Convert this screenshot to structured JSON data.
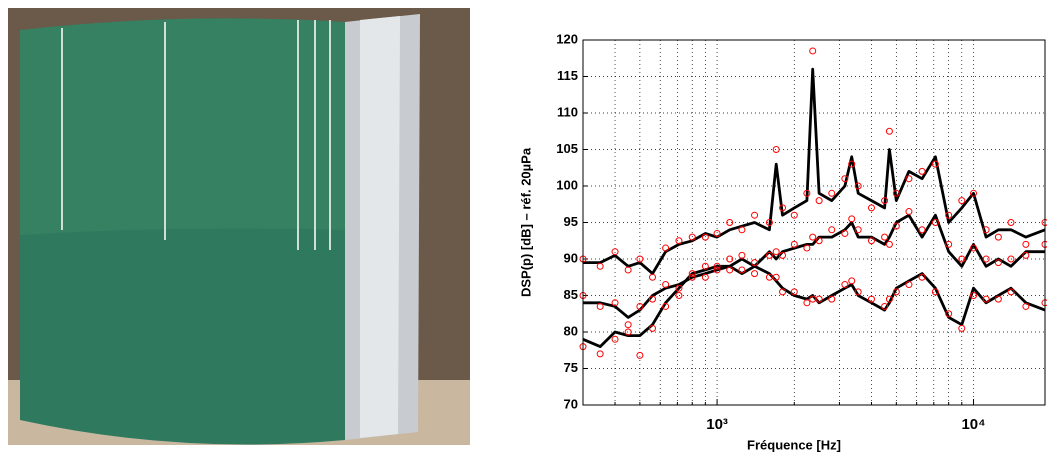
{
  "chart_data": {
    "type": "line",
    "xlabel": "Fréquence [Hz]",
    "ylabel": "DSP(p) [dB] – réf. 20µPa",
    "log_x": true,
    "grid": true,
    "xlim": [
      300,
      19000
    ],
    "ylim": [
      70,
      120
    ],
    "xticks": [
      {
        "value": 1000,
        "label": "10³"
      },
      {
        "value": 10000,
        "label": "10⁴"
      }
    ],
    "xminorticks": [
      400,
      500,
      600,
      700,
      800,
      900,
      2000,
      3000,
      4000,
      5000,
      6000,
      7000,
      8000,
      9000
    ],
    "yticks": [
      70,
      75,
      80,
      85,
      90,
      95,
      100,
      105,
      110,
      115,
      120
    ],
    "x": [
      300,
      350,
      400,
      450,
      500,
      560,
      630,
      710,
      800,
      900,
      1000,
      1120,
      1250,
      1400,
      1600,
      1700,
      1800,
      2000,
      2240,
      2360,
      2500,
      2800,
      3150,
      3350,
      3550,
      4000,
      4500,
      4700,
      5000,
      5600,
      6300,
      7100,
      8000,
      9000,
      10000,
      11200,
      12500,
      14000,
      16000,
      19000
    ],
    "series": [
      {
        "style": "line",
        "color": "#000000",
        "values": [
          89.5,
          89.5,
          90.5,
          89,
          89.5,
          88,
          91,
          92,
          92.5,
          93.5,
          93,
          94,
          94.5,
          95,
          94,
          103,
          96,
          97,
          98,
          116,
          99,
          98,
          100,
          104,
          99,
          98,
          97,
          105,
          98,
          102,
          101,
          104,
          95,
          97,
          99,
          93,
          94,
          94,
          93,
          94
        ]
      },
      {
        "style": "line",
        "color": "#000000",
        "values": [
          84,
          84,
          83.5,
          82,
          83,
          85,
          86,
          86.5,
          87.5,
          88,
          88.5,
          89,
          90,
          89,
          91,
          90,
          91,
          91.5,
          92,
          92,
          93,
          93,
          94,
          95,
          93,
          93,
          92,
          93,
          95,
          96,
          93,
          96,
          91,
          89,
          92,
          89,
          90,
          89,
          91,
          91
        ]
      },
      {
        "style": "line",
        "color": "#000000",
        "values": [
          79,
          78,
          80,
          79.5,
          79.5,
          81,
          84,
          86,
          88,
          88.5,
          89,
          89,
          88,
          89,
          88,
          87,
          86,
          85,
          84.5,
          85,
          84,
          85,
          86,
          86.5,
          85,
          84,
          83,
          84,
          86,
          87,
          88,
          86,
          82,
          81,
          86,
          84,
          85,
          86,
          84,
          83
        ]
      },
      {
        "style": "markers",
        "color": "#ff0000",
        "values": [
          90,
          89,
          91,
          88.5,
          90,
          87.5,
          91.5,
          92.5,
          93,
          93,
          93.5,
          95,
          94,
          96,
          95,
          105,
          97,
          96,
          99,
          118.5,
          98,
          99,
          101,
          103,
          100,
          97,
          98,
          107.5,
          99,
          101,
          102,
          103,
          96,
          98,
          99,
          94,
          93,
          95,
          92,
          95
        ]
      },
      {
        "style": "markers",
        "color": "#ff0000",
        "values": [
          85,
          83.5,
          84,
          81,
          83.5,
          84.5,
          86.5,
          86,
          88,
          87.5,
          89,
          88.5,
          90.5,
          89.5,
          90.5,
          91,
          90.5,
          92,
          91.5,
          93,
          92.5,
          94,
          93.5,
          95.5,
          94,
          92.5,
          93,
          92,
          94.5,
          96.5,
          94,
          95,
          92,
          90,
          91.5,
          90,
          89.5,
          90,
          90.5,
          92
        ]
      },
      {
        "style": "markers",
        "color": "#ff0000",
        "values": [
          78,
          77,
          79,
          80,
          76.8,
          80.5,
          83.5,
          85,
          87.5,
          89,
          88.5,
          90,
          88.5,
          88,
          87.5,
          87.5,
          85.5,
          85.5,
          84,
          84.5,
          84.5,
          84.5,
          86.5,
          87,
          85.5,
          84.5,
          83.5,
          84.5,
          85.5,
          86.5,
          87.5,
          85.5,
          82.5,
          80.5,
          85,
          84.5,
          84.5,
          85.5,
          83.5,
          84
        ]
      }
    ]
  }
}
